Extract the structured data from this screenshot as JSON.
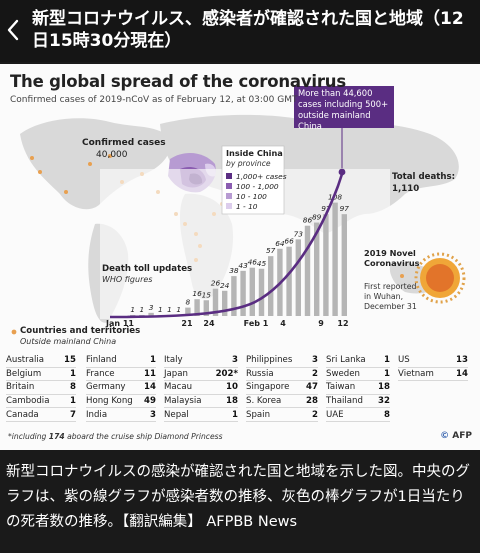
{
  "header": {
    "title": "新型コロナウイルス、感染者が確認された国と地域（12日15時30分現在）"
  },
  "figure": {
    "title": "The global spread of the coronavirus",
    "subtitle": "Confirmed cases of 2019-nCoV as of February 12, at 03:00 GMT",
    "callout": "More than 44,600 cases including 500+ outside mainland China",
    "confirmed_label": "Confirmed cases",
    "confirmed_value": "40,000",
    "inside_china_title": "Inside China",
    "inside_china_sub": "by province",
    "legend_items": [
      "1,000+ cases",
      "100 - 1,000",
      "10 - 100",
      "1 - 10"
    ],
    "legend_colors": [
      "#5a2d82",
      "#8a5cb0",
      "#b79bd2",
      "#dccdec"
    ],
    "total_deaths_label": "Total deaths:",
    "total_deaths_value": "1,110",
    "novel_title": "2019 Novel Coronavirus",
    "novel_sub": "First reported in Wuhan, December 31",
    "death_toll_label": "Death toll updates",
    "death_toll_sub": "WHO figures",
    "countries_label": "Countries and territories",
    "countries_sub": "Outside mainland China",
    "footnote_pre": "*including ",
    "footnote_bold": "174",
    "footnote_post": " aboard the cruise ship Diamond Princess",
    "logo": "AFP"
  },
  "chart_data": {
    "type": "bar",
    "title": "The global spread of the coronavirus",
    "x_tick_labels": [
      "Jan 11",
      "21",
      "24",
      "Feb 1",
      "4",
      "9",
      "12"
    ],
    "bar_labels": [
      "1",
      "1",
      "3",
      "1",
      "1",
      "1",
      "8",
      "16",
      "15",
      "26",
      "24",
      "38",
      "43",
      "46",
      "45",
      "57",
      "64",
      "66",
      "73",
      "86",
      "89",
      "97",
      "108",
      "97"
    ],
    "bar_values": [
      1,
      1,
      3,
      1,
      1,
      1,
      8,
      16,
      15,
      26,
      24,
      38,
      43,
      46,
      45,
      57,
      64,
      66,
      73,
      86,
      89,
      97,
      108,
      97
    ],
    "series": [
      {
        "name": "Death toll updates",
        "values": [
          1,
          1,
          3,
          1,
          1,
          1,
          8,
          16,
          15,
          26,
          24,
          38,
          43,
          46,
          45,
          57,
          64,
          66,
          73,
          86,
          89,
          97,
          108,
          97
        ]
      }
    ]
  },
  "countries": [
    [
      [
        "Australia",
        "15"
      ],
      [
        "Belgium",
        "1"
      ],
      [
        "Britain",
        "8"
      ],
      [
        "Cambodia",
        "1"
      ],
      [
        "Canada",
        "7"
      ]
    ],
    [
      [
        "Finland",
        "1"
      ],
      [
        "France",
        "11"
      ],
      [
        "Germany",
        "14"
      ],
      [
        "Hong Kong",
        "49"
      ],
      [
        "India",
        "3"
      ]
    ],
    [
      [
        "Italy",
        "3"
      ],
      [
        "Japan",
        "202*"
      ],
      [
        "Macau",
        "10"
      ],
      [
        "Malaysia",
        "18"
      ],
      [
        "Nepal",
        "1"
      ]
    ],
    [
      [
        "Philippines",
        "3"
      ],
      [
        "Russia",
        "2"
      ],
      [
        "Singapore",
        "47"
      ],
      [
        "S. Korea",
        "28"
      ],
      [
        "Spain",
        "2"
      ]
    ],
    [
      [
        "Sri Lanka",
        "1"
      ],
      [
        "Sweden",
        "1"
      ],
      [
        "Taiwan",
        "18"
      ],
      [
        "Thailand",
        "32"
      ],
      [
        "UAE",
        "8"
      ]
    ],
    [
      [
        "US",
        "13"
      ],
      [
        "Vietnam",
        "14"
      ]
    ]
  ],
  "caption": "新型コロナウイルスの感染が確認された国と地域を示した図。中央のグラフは、紫の線グラフが感染者数の推移、灰色の棒グラフが1日当たりの死者数の推移。【翻訳編集】 AFPBB News",
  "colors": {
    "accent_purple": "#5a2d82",
    "bar_gray": "#b5b5b5",
    "map_gray": "#d9d9d9",
    "dot_orange": "#e8a050"
  }
}
